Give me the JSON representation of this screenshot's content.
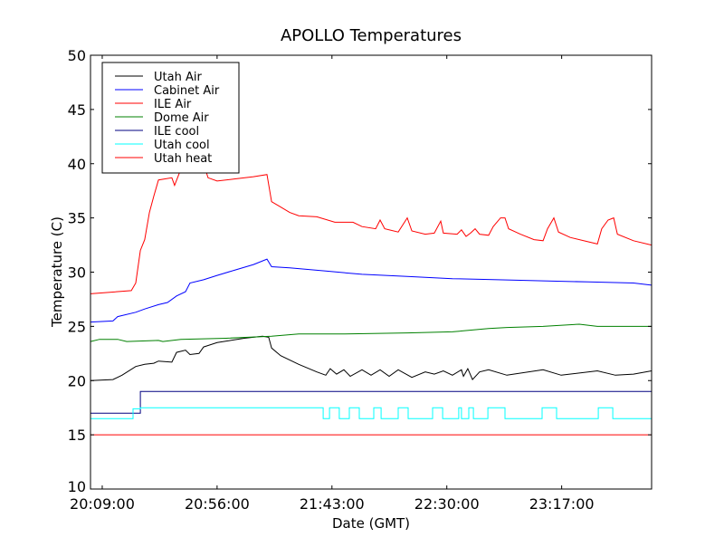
{
  "chart_data": {
    "type": "line",
    "title": "APOLLO Temperatures",
    "xlabel": "Date (GMT)",
    "ylabel": "Temperature (C)",
    "x_units": "minutes after 20:00:00 GMT",
    "xlim": [
      4.2,
      233.8
    ],
    "ylim": [
      10,
      50
    ],
    "xticks": [
      {
        "value": 9,
        "label": "20:09:00"
      },
      {
        "value": 56,
        "label": "20:56:00"
      },
      {
        "value": 103,
        "label": "21:43:00"
      },
      {
        "value": 150,
        "label": "22:30:00"
      },
      {
        "value": 197,
        "label": "23:17:00"
      }
    ],
    "yticks": [
      {
        "value": 10,
        "label": "10"
      },
      {
        "value": 15,
        "label": "15"
      },
      {
        "value": 20,
        "label": "20"
      },
      {
        "value": 25,
        "label": "25"
      },
      {
        "value": 30,
        "label": "30"
      },
      {
        "value": 35,
        "label": "35"
      },
      {
        "value": 40,
        "label": "40"
      },
      {
        "value": 45,
        "label": "45"
      },
      {
        "value": 50,
        "label": "50"
      }
    ],
    "grid": false,
    "legend_position": "top-left",
    "series": [
      {
        "name": "Utah Air",
        "color": "#000000",
        "kind": "line",
        "points": [
          [
            4.2,
            20
          ],
          [
            13.4,
            20.1
          ],
          [
            17.1,
            20.5
          ],
          [
            22.7,
            21.3
          ],
          [
            26.4,
            21.5
          ],
          [
            30.1,
            21.6
          ],
          [
            32,
            21.8
          ],
          [
            37.5,
            21.7
          ],
          [
            39.4,
            22.6
          ],
          [
            43.1,
            22.8
          ],
          [
            44.9,
            22.4
          ],
          [
            48.6,
            22.5
          ],
          [
            50.5,
            23.1
          ],
          [
            56,
            23.5
          ],
          [
            67.1,
            23.9
          ],
          [
            74.6,
            24.1
          ],
          [
            77.1,
            24
          ],
          [
            78.3,
            23
          ],
          [
            82,
            22.3
          ],
          [
            89.4,
            21.5
          ],
          [
            96.8,
            20.8
          ],
          [
            100.5,
            20.5
          ],
          [
            102.3,
            21.1
          ],
          [
            104.9,
            20.6
          ],
          [
            107.9,
            21
          ],
          [
            110.5,
            20.4
          ],
          [
            115.3,
            21
          ],
          [
            119,
            20.5
          ],
          [
            122.7,
            21
          ],
          [
            126.4,
            20.4
          ],
          [
            130.1,
            21
          ],
          [
            135.7,
            20.3
          ],
          [
            141.2,
            20.8
          ],
          [
            144.9,
            20.6
          ],
          [
            148.6,
            20.9
          ],
          [
            152.3,
            20.5
          ],
          [
            156,
            21
          ],
          [
            156.8,
            20.4
          ],
          [
            158.6,
            21.1
          ],
          [
            160.5,
            20.1
          ],
          [
            163.4,
            20.8
          ],
          [
            167.1,
            21
          ],
          [
            174.6,
            20.5
          ],
          [
            189.4,
            21
          ],
          [
            196.8,
            20.5
          ],
          [
            211.6,
            20.9
          ],
          [
            219,
            20.5
          ],
          [
            226.4,
            20.6
          ],
          [
            233.8,
            20.9
          ]
        ]
      },
      {
        "name": "Cabinet Air",
        "color": "#0000ff",
        "kind": "line",
        "points": [
          [
            4.2,
            25.4
          ],
          [
            13.4,
            25.5
          ],
          [
            15.3,
            25.9
          ],
          [
            22.7,
            26.3
          ],
          [
            26.4,
            26.6
          ],
          [
            32,
            27
          ],
          [
            35.7,
            27.2
          ],
          [
            39.4,
            27.8
          ],
          [
            43.1,
            28.2
          ],
          [
            44.9,
            29
          ],
          [
            50.5,
            29.3
          ],
          [
            56,
            29.7
          ],
          [
            63.4,
            30.2
          ],
          [
            70.9,
            30.7
          ],
          [
            76.4,
            31.2
          ],
          [
            78.3,
            30.5
          ],
          [
            85.7,
            30.4
          ],
          [
            100.5,
            30.1
          ],
          [
            115.3,
            29.8
          ],
          [
            133.8,
            29.6
          ],
          [
            152.3,
            29.4
          ],
          [
            170.9,
            29.3
          ],
          [
            189.4,
            29.2
          ],
          [
            207.9,
            29.1
          ],
          [
            226.4,
            29
          ],
          [
            233.8,
            28.8
          ]
        ]
      },
      {
        "name": "ILE Air",
        "color": "#ff0000",
        "kind": "line",
        "points": [
          [
            4.2,
            28
          ],
          [
            20.9,
            28.3
          ],
          [
            22.7,
            29
          ],
          [
            24.6,
            32
          ],
          [
            26.4,
            33
          ],
          [
            28.3,
            35.5
          ],
          [
            30.1,
            37
          ],
          [
            32,
            38.5
          ],
          [
            37.5,
            38.7
          ],
          [
            38.6,
            38
          ],
          [
            41.2,
            39.5
          ],
          [
            43.1,
            40.5
          ],
          [
            48.6,
            40.3
          ],
          [
            50.5,
            40
          ],
          [
            52.3,
            38.7
          ],
          [
            56,
            38.4
          ],
          [
            63.4,
            38.6
          ],
          [
            70.9,
            38.8
          ],
          [
            76.4,
            39
          ],
          [
            78.3,
            36.5
          ],
          [
            82,
            36
          ],
          [
            85.7,
            35.5
          ],
          [
            89.4,
            35.2
          ],
          [
            96.8,
            35.1
          ],
          [
            104.2,
            34.6
          ],
          [
            111.6,
            34.6
          ],
          [
            115.3,
            34.2
          ],
          [
            120.9,
            34
          ],
          [
            122.7,
            34.8
          ],
          [
            124.6,
            34
          ],
          [
            130.1,
            33.7
          ],
          [
            133.8,
            35
          ],
          [
            135.7,
            33.8
          ],
          [
            141.2,
            33.5
          ],
          [
            144.9,
            33.6
          ],
          [
            147.5,
            34.7
          ],
          [
            148.6,
            33.6
          ],
          [
            154.2,
            33.5
          ],
          [
            156,
            33.9
          ],
          [
            157.9,
            33.3
          ],
          [
            159.7,
            33.6
          ],
          [
            161.6,
            34
          ],
          [
            163.4,
            33.5
          ],
          [
            167.1,
            33.4
          ],
          [
            169,
            34.2
          ],
          [
            172,
            35
          ],
          [
            173.8,
            35
          ],
          [
            175.3,
            34
          ],
          [
            180.1,
            33.5
          ],
          [
            185.7,
            33
          ],
          [
            189.4,
            32.9
          ],
          [
            191.2,
            34
          ],
          [
            193.8,
            35
          ],
          [
            195.7,
            33.7
          ],
          [
            200.5,
            33.2
          ],
          [
            207.9,
            32.8
          ],
          [
            211.6,
            32.6
          ],
          [
            213.4,
            34
          ],
          [
            216,
            34.8
          ],
          [
            218.3,
            35
          ],
          [
            219.8,
            33.5
          ],
          [
            226.4,
            32.9
          ],
          [
            233.8,
            32.5
          ]
        ]
      },
      {
        "name": "Dome Air",
        "color": "#008000",
        "kind": "line",
        "points": [
          [
            4.2,
            23.6
          ],
          [
            7.9,
            23.8
          ],
          [
            15.3,
            23.8
          ],
          [
            19,
            23.6
          ],
          [
            32,
            23.7
          ],
          [
            33.8,
            23.6
          ],
          [
            41.2,
            23.8
          ],
          [
            59.7,
            23.9
          ],
          [
            78.3,
            24.1
          ],
          [
            89.4,
            24.3
          ],
          [
            107.9,
            24.3
          ],
          [
            133.8,
            24.4
          ],
          [
            152.3,
            24.5
          ],
          [
            167.1,
            24.8
          ],
          [
            174.6,
            24.9
          ],
          [
            189.4,
            25
          ],
          [
            204.2,
            25.2
          ],
          [
            211.6,
            25
          ],
          [
            233.8,
            25
          ]
        ]
      },
      {
        "name": "ILE cool",
        "color": "#000080",
        "kind": "step",
        "points": [
          [
            4.2,
            17
          ],
          [
            24.6,
            19
          ],
          [
            233.8,
            19
          ]
        ]
      },
      {
        "name": "Utah cool",
        "color": "#00ffff",
        "kind": "step",
        "points": [
          [
            4.2,
            16.5
          ],
          [
            21.6,
            17.4
          ],
          [
            24.6,
            17.5
          ],
          [
            99.4,
            16.5
          ],
          [
            102,
            17.5
          ],
          [
            106,
            16.5
          ],
          [
            110.1,
            17.5
          ],
          [
            114.2,
            16.5
          ],
          [
            120.1,
            17.5
          ],
          [
            123.1,
            16.5
          ],
          [
            130.1,
            17.5
          ],
          [
            134.2,
            16.5
          ],
          [
            144.2,
            17.5
          ],
          [
            148.3,
            16.5
          ],
          [
            154.9,
            17.5
          ],
          [
            156,
            16.5
          ],
          [
            159,
            17.5
          ],
          [
            160.9,
            16.5
          ],
          [
            166.8,
            17.5
          ],
          [
            173.8,
            16.5
          ],
          [
            189,
            17.5
          ],
          [
            194.9,
            16.5
          ],
          [
            212,
            17.5
          ],
          [
            217.9,
            16.5
          ],
          [
            233.8,
            16.5
          ]
        ]
      },
      {
        "name": "Utah heat",
        "color": "#ff0000",
        "kind": "step",
        "points": [
          [
            4.2,
            15
          ],
          [
            233.8,
            15
          ]
        ]
      }
    ]
  }
}
